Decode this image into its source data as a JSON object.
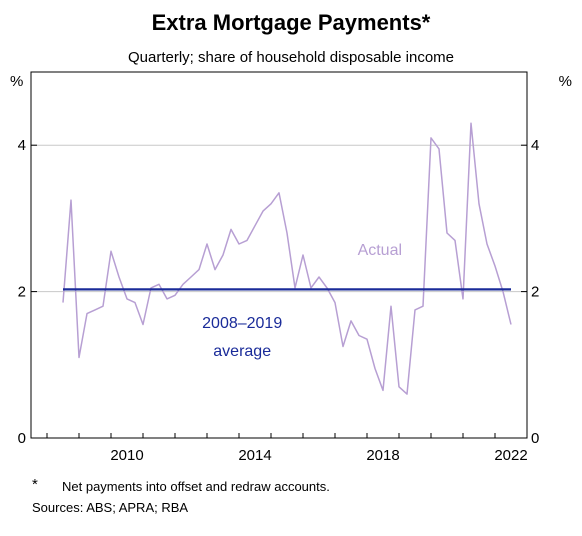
{
  "chart_data": {
    "type": "line",
    "title": "Extra Mortgage Payments*",
    "subtitle": "Quarterly; share of household disposable income",
    "y_unit_left": "%",
    "y_unit_right": "%",
    "ylim": [
      0,
      5
    ],
    "yticks": [
      0,
      2,
      4
    ],
    "xlim": [
      2007.5,
      2023.0
    ],
    "xticks": [
      2010,
      2014,
      2018,
      2022
    ],
    "grid": true,
    "series": [
      {
        "name": "Actual",
        "color": "#b79fd3",
        "x": [
          2008.5,
          2008.75,
          2009.0,
          2009.25,
          2009.5,
          2009.75,
          2010.0,
          2010.25,
          2010.5,
          2010.75,
          2011.0,
          2011.25,
          2011.5,
          2011.75,
          2012.0,
          2012.25,
          2012.5,
          2012.75,
          2013.0,
          2013.25,
          2013.5,
          2013.75,
          2014.0,
          2014.25,
          2014.5,
          2014.75,
          2015.0,
          2015.25,
          2015.5,
          2015.75,
          2016.0,
          2016.25,
          2016.5,
          2016.75,
          2017.0,
          2017.25,
          2017.5,
          2017.75,
          2018.0,
          2018.25,
          2018.5,
          2018.75,
          2019.0,
          2019.25,
          2019.5,
          2019.75,
          2020.0,
          2020.25,
          2020.5,
          2020.75,
          2021.0,
          2021.25,
          2021.5,
          2021.75,
          2022.0,
          2022.25,
          2022.5
        ],
        "values": [
          1.85,
          3.25,
          1.1,
          1.7,
          1.75,
          1.8,
          2.55,
          2.2,
          1.9,
          1.85,
          1.55,
          2.05,
          2.1,
          1.9,
          1.95,
          2.1,
          2.2,
          2.3,
          2.65,
          2.3,
          2.5,
          2.85,
          2.65,
          2.7,
          2.9,
          3.1,
          3.2,
          3.35,
          2.8,
          2.05,
          2.5,
          2.05,
          2.2,
          2.05,
          1.85,
          1.25,
          1.6,
          1.4,
          1.35,
          0.95,
          0.65,
          1.8,
          0.7,
          0.6,
          1.75,
          1.8,
          4.1,
          3.95,
          2.8,
          2.7,
          1.9,
          4.3,
          3.2,
          2.65,
          2.35,
          2.0,
          1.55
        ]
      },
      {
        "name": "2008–2019 average",
        "color": "#1a2b99",
        "x": [
          2008.5,
          2022.5
        ],
        "values": [
          2.03,
          2.03
        ]
      }
    ],
    "annotations": {
      "actual_label": "Actual",
      "average_label_line1": "2008–2019",
      "average_label_line2": "average"
    },
    "footnote_mark": "*",
    "footnote": "Net payments into offset and redraw accounts.",
    "sources": "Sources: ABS; APRA; RBA"
  }
}
